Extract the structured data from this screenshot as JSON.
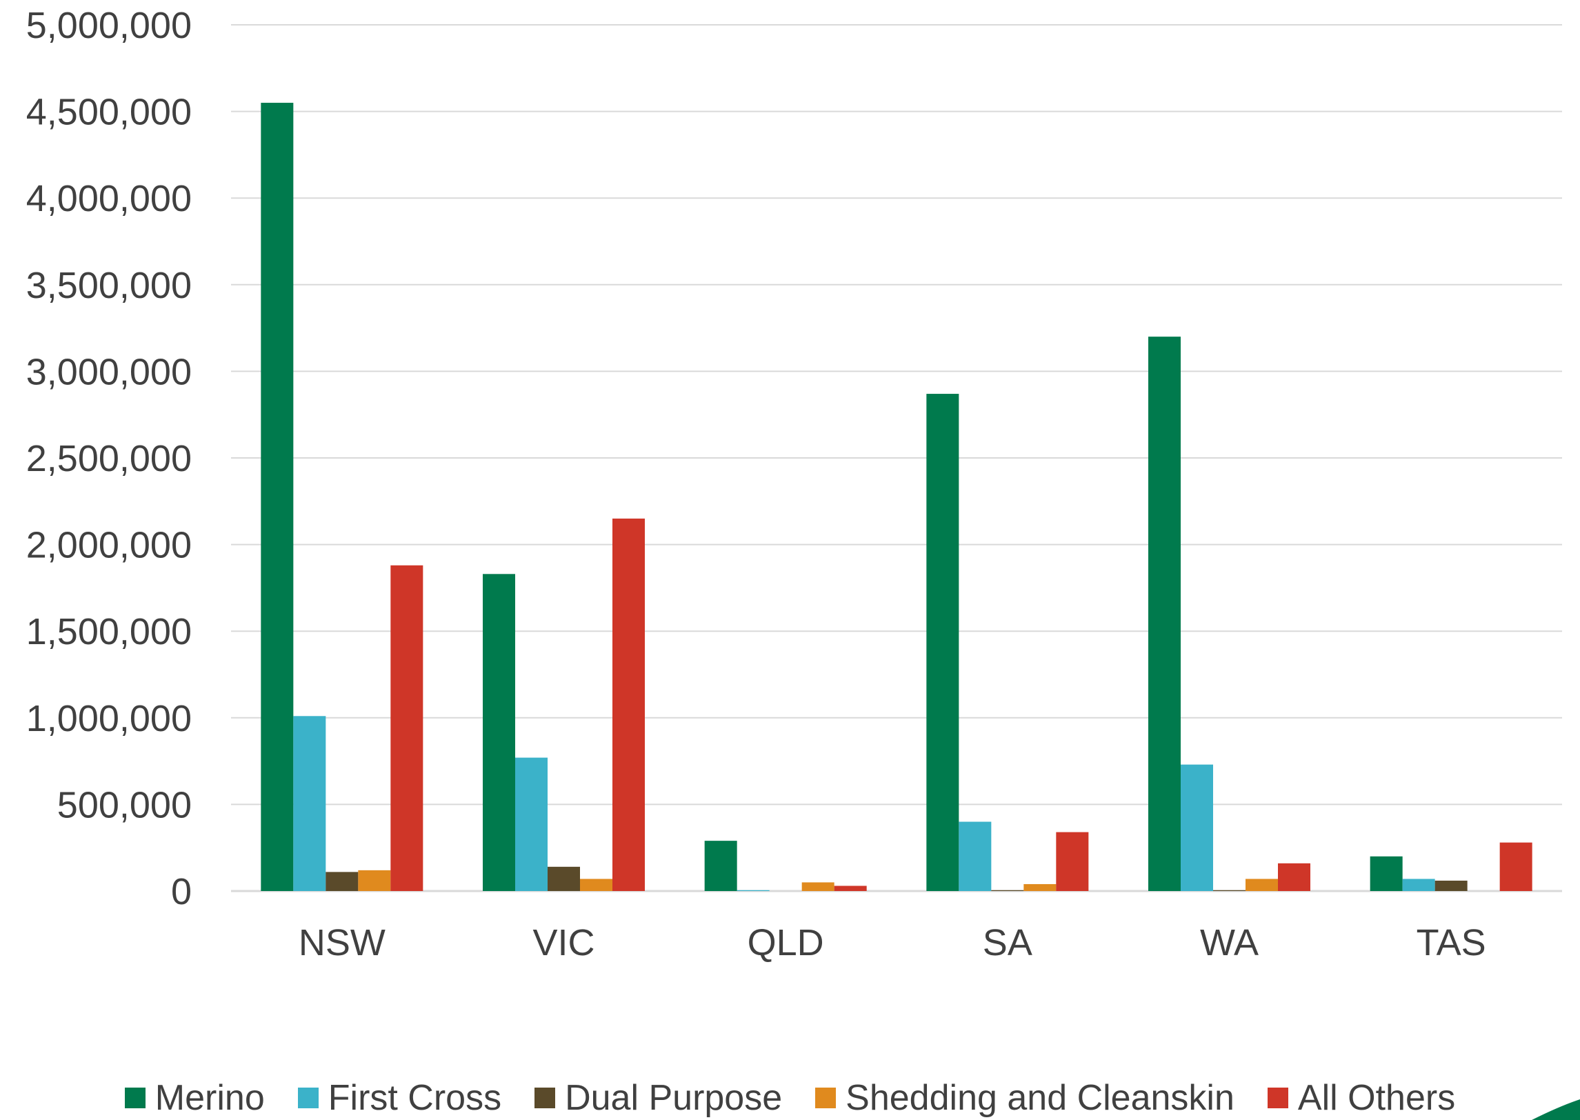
{
  "chart_data": {
    "type": "bar",
    "categories": [
      "NSW",
      "VIC",
      "QLD",
      "SA",
      "WA",
      "TAS"
    ],
    "series": [
      {
        "name": "Merino",
        "color": "#007a4d",
        "values": [
          4550000,
          1830000,
          290000,
          2870000,
          3200000,
          200000
        ]
      },
      {
        "name": "First Cross",
        "color": "#3bb2c9",
        "values": [
          1010000,
          770000,
          5000,
          400000,
          730000,
          70000
        ]
      },
      {
        "name": "Dual Purpose",
        "color": "#5a4a2a",
        "values": [
          110000,
          140000,
          0,
          5000,
          5000,
          60000
        ]
      },
      {
        "name": "Shedding and Cleanskin",
        "color": "#e08a1e",
        "values": [
          120000,
          70000,
          50000,
          40000,
          70000,
          0
        ]
      },
      {
        "name": "All Others",
        "color": "#cf3628",
        "values": [
          1880000,
          2150000,
          30000,
          340000,
          160000,
          280000
        ]
      }
    ],
    "y_ticks": [
      "0",
      "500,000",
      "1,000,000",
      "1,500,000",
      "2,000,000",
      "2,500,000",
      "3,000,000",
      "3,500,000",
      "4,000,000",
      "4,500,000",
      "5,000,000"
    ],
    "ylim": [
      0,
      5000000
    ],
    "grid": true,
    "legend_position": "bottom"
  }
}
